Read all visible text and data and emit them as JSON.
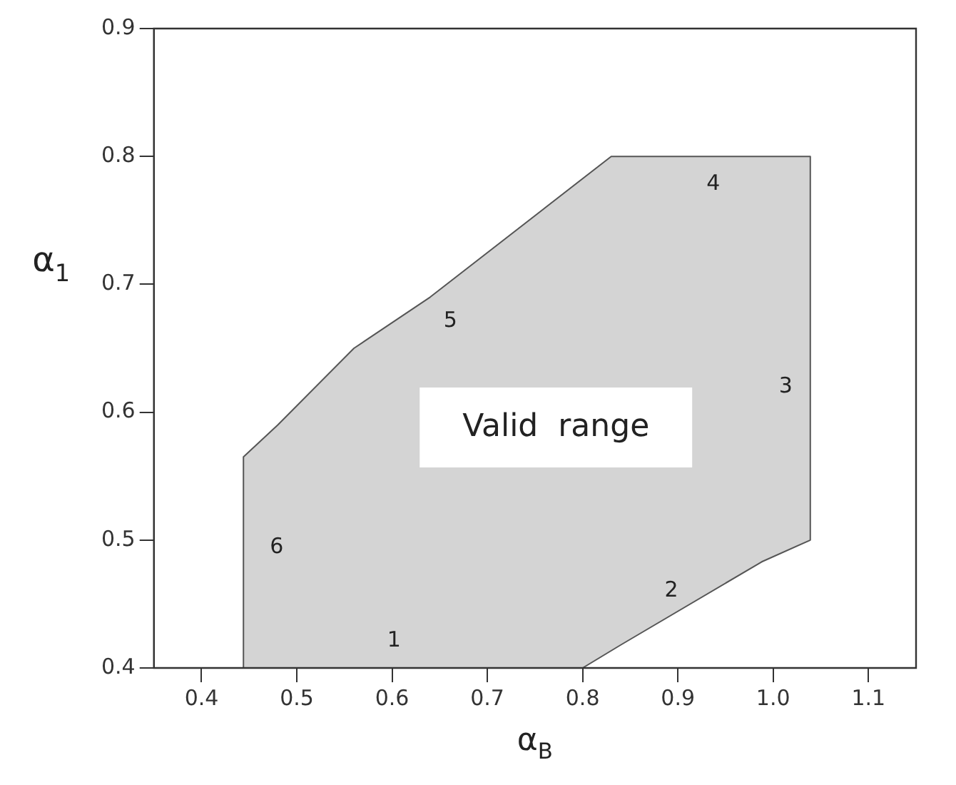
{
  "chart_data": {
    "type": "area",
    "xlabel": "α$_{B}$",
    "ylabel": "α$_{1}$",
    "series": [
      {
        "color": "#555555",
        "x": [
          0.444,
          0.444,
          0.48,
          0.56,
          0.64,
          0.83,
          1.039,
          1.039,
          0.988,
          0.84,
          0.8,
          0.444
        ],
        "values": [
          0.4,
          0.565,
          0.59,
          0.65,
          0.69,
          0.8,
          0.8,
          0.5,
          0.483,
          0.418,
          0.4,
          0.4
        ]
      }
    ],
    "xlim": [
      0.35,
      1.15
    ],
    "xticks": [
      {
        "value": 0.4,
        "label": "0.4"
      },
      {
        "value": 0.5,
        "label": "0.5"
      },
      {
        "value": 0.6,
        "label": "0.6"
      },
      {
        "value": 0.7,
        "label": "0.7"
      },
      {
        "value": 0.8,
        "label": "0.8"
      },
      {
        "value": 0.9,
        "label": "0.9"
      },
      {
        "value": 1.0,
        "label": "1.0"
      },
      {
        "value": 1.1,
        "label": "1.1"
      }
    ],
    "ylim": [
      0.4,
      0.9
    ],
    "yticks": [
      {
        "value": 0.4,
        "label": "0.4"
      },
      {
        "value": 0.5,
        "label": "0.5"
      },
      {
        "value": 0.6,
        "label": "0.6"
      },
      {
        "value": 0.7,
        "label": "0.7"
      },
      {
        "value": 0.8,
        "label": "0.8"
      },
      {
        "value": 0.9,
        "label": "0.9"
      }
    ],
    "annotations": [
      "Valid  range",
      "1",
      "2",
      "3",
      "4",
      "5",
      "6"
    ],
    "grid": false,
    "legend": false,
    "marker": "none"
  }
}
